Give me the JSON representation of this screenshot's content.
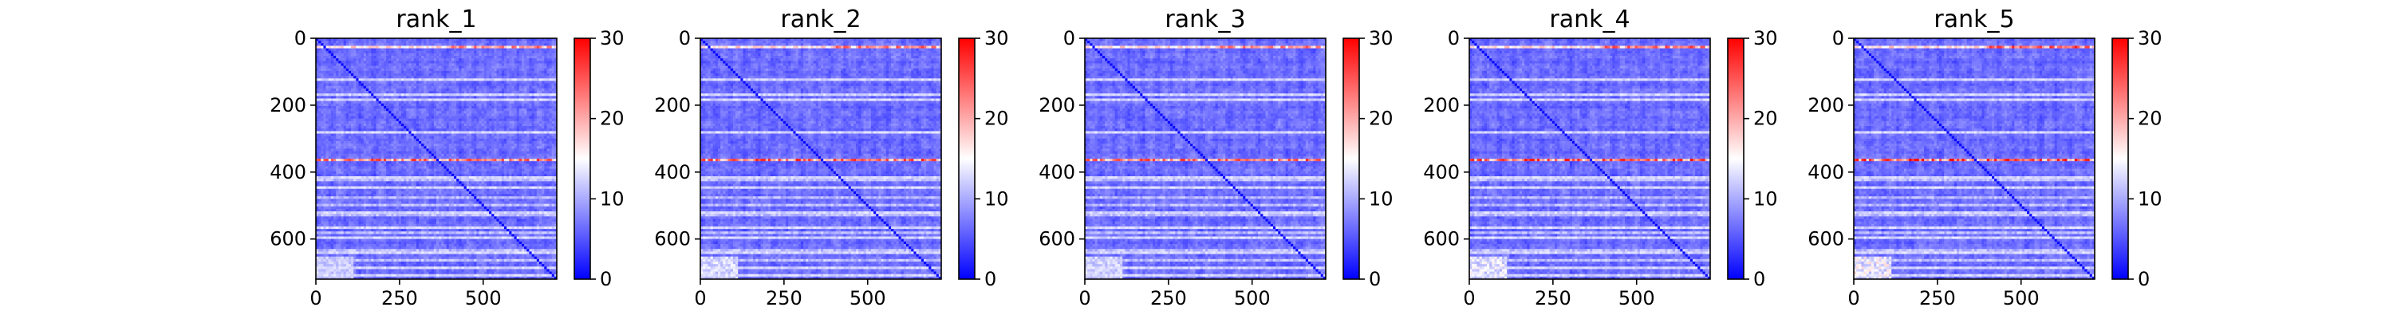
{
  "chart_data": [
    {
      "type": "heatmap",
      "title": "rank_1",
      "xlabel": "",
      "ylabel": "",
      "xlim": [
        0,
        720
      ],
      "ylim": [
        720,
        0
      ],
      "x_ticks": [
        0,
        250,
        500
      ],
      "y_ticks": [
        0,
        200,
        400,
        600
      ],
      "colorbar": {
        "min": 0,
        "max": 30,
        "ticks": [
          0,
          10,
          20,
          30
        ],
        "colormap": "bwr"
      },
      "hot_rows": [
        20,
        362
      ],
      "light_rows": [
        20,
        120,
        165,
        180,
        278,
        362,
        415,
        445,
        520,
        560,
        590,
        640,
        680,
        705
      ],
      "bright_bottom_band": 0.25,
      "hot_row_peak": 26
    },
    {
      "type": "heatmap",
      "title": "rank_2",
      "xlabel": "",
      "ylabel": "",
      "xlim": [
        0,
        720
      ],
      "ylim": [
        720,
        0
      ],
      "x_ticks": [
        0,
        250,
        500
      ],
      "y_ticks": [
        0,
        200,
        400,
        600
      ],
      "colorbar": {
        "min": 0,
        "max": 30,
        "ticks": [
          0,
          10,
          20,
          30
        ],
        "colormap": "bwr"
      },
      "hot_rows": [
        20,
        362
      ],
      "light_rows": [
        20,
        120,
        165,
        180,
        278,
        362,
        415,
        445,
        520,
        560,
        590,
        640,
        680,
        705
      ],
      "bright_bottom_band": 0.35,
      "hot_row_peak": 27
    },
    {
      "type": "heatmap",
      "title": "rank_3",
      "xlabel": "",
      "ylabel": "",
      "xlim": [
        0,
        720
      ],
      "ylim": [
        720,
        0
      ],
      "x_ticks": [
        0,
        250,
        500
      ],
      "y_ticks": [
        0,
        200,
        400,
        600
      ],
      "colorbar": {
        "min": 0,
        "max": 30,
        "ticks": [
          0,
          10,
          20,
          30
        ],
        "colormap": "bwr"
      },
      "hot_rows": [
        20,
        362
      ],
      "light_rows": [
        20,
        120,
        165,
        180,
        278,
        362,
        415,
        445,
        520,
        560,
        590,
        640,
        680,
        705
      ],
      "bright_bottom_band": 0.3,
      "hot_row_peak": 26
    },
    {
      "type": "heatmap",
      "title": "rank_4",
      "xlabel": "",
      "ylabel": "",
      "xlim": [
        0,
        720
      ],
      "ylim": [
        720,
        0
      ],
      "x_ticks": [
        0,
        250,
        500
      ],
      "y_ticks": [
        0,
        200,
        400,
        600
      ],
      "colorbar": {
        "min": 0,
        "max": 30,
        "ticks": [
          0,
          10,
          20,
          30
        ],
        "colormap": "bwr"
      },
      "hot_rows": [
        20,
        362
      ],
      "light_rows": [
        20,
        120,
        165,
        180,
        278,
        362,
        415,
        445,
        520,
        560,
        590,
        640,
        680,
        705
      ],
      "bright_bottom_band": 0.45,
      "hot_row_peak": 28
    },
    {
      "type": "heatmap",
      "title": "rank_5",
      "xlabel": "",
      "ylabel": "",
      "xlim": [
        0,
        720
      ],
      "ylim": [
        720,
        0
      ],
      "x_ticks": [
        0,
        250,
        500
      ],
      "y_ticks": [
        0,
        200,
        400,
        600
      ],
      "colorbar": {
        "min": 0,
        "max": 30,
        "ticks": [
          0,
          10,
          20,
          30
        ],
        "colormap": "bwr"
      },
      "hot_rows": [
        20,
        362
      ],
      "light_rows": [
        20,
        120,
        165,
        180,
        278,
        362,
        415,
        445,
        520,
        560,
        590,
        640,
        680,
        705
      ],
      "bright_bottom_band": 0.55,
      "hot_row_peak": 29
    }
  ]
}
